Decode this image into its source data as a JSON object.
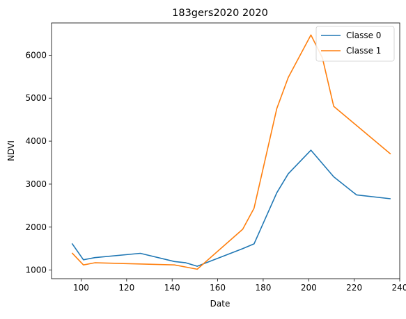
{
  "chart_data": {
    "type": "line",
    "title": "183gers2020 2020",
    "xlabel": "Date",
    "ylabel": "NDVI",
    "xlim": [
      87,
      240
    ],
    "ylim": [
      800,
      6750
    ],
    "xticks": [
      100,
      120,
      140,
      160,
      180,
      200,
      220,
      240
    ],
    "yticks": [
      1000,
      2000,
      3000,
      4000,
      5000,
      6000
    ],
    "grid": false,
    "legend_position": "top-right",
    "series": [
      {
        "name": "Classe 0",
        "color": "#1f77b4",
        "x": [
          96,
          101,
          106,
          126,
          141,
          146,
          151,
          171,
          176,
          186,
          191,
          201,
          211,
          221,
          236
        ],
        "y": [
          1620,
          1240,
          1290,
          1390,
          1200,
          1170,
          1090,
          1500,
          1610,
          2800,
          3240,
          3790,
          3170,
          2750,
          2660
        ]
      },
      {
        "name": "Classe 1",
        "color": "#ff7f0e",
        "x": [
          96,
          101,
          106,
          141,
          151,
          171,
          176,
          186,
          191,
          201,
          206,
          211,
          236
        ],
        "y": [
          1400,
          1120,
          1170,
          1120,
          1020,
          1950,
          2440,
          4760,
          5480,
          6470,
          5940,
          4810,
          3700
        ]
      }
    ]
  }
}
